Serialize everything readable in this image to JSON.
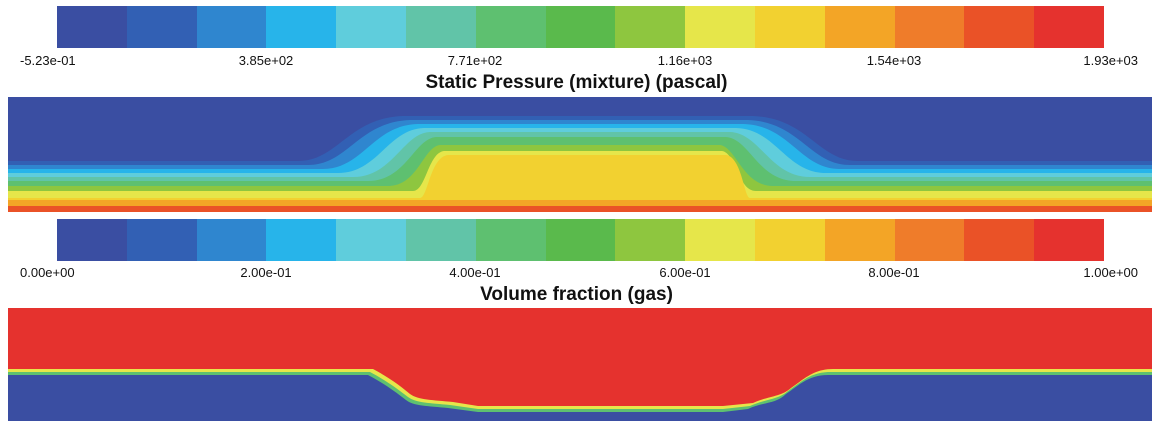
{
  "colormap": [
    "#3a4ea2",
    "#3260b4",
    "#2f86cf",
    "#27b4ea",
    "#5fcddc",
    "#61c4a8",
    "#5ec070",
    "#5aba4c",
    "#8ec63f",
    "#e6e64a",
    "#f2d130",
    "#f3a526",
    "#ef7c2a",
    "#ea5227",
    "#e5322e"
  ],
  "pressure_panel": {
    "title": "Static Pressure (mixture) (pascal)",
    "tick_labels": [
      "-5.23e-01",
      "3.85e+02",
      "7.71e+02",
      "1.16e+03",
      "1.54e+03",
      "1.93e+03"
    ]
  },
  "volume_panel": {
    "title": "Volume fraction (gas)",
    "tick_labels": [
      "0.00e+00",
      "2.00e-01",
      "4.00e-01",
      "6.00e-01",
      "8.00e-01",
      "1.00e+00"
    ]
  }
}
